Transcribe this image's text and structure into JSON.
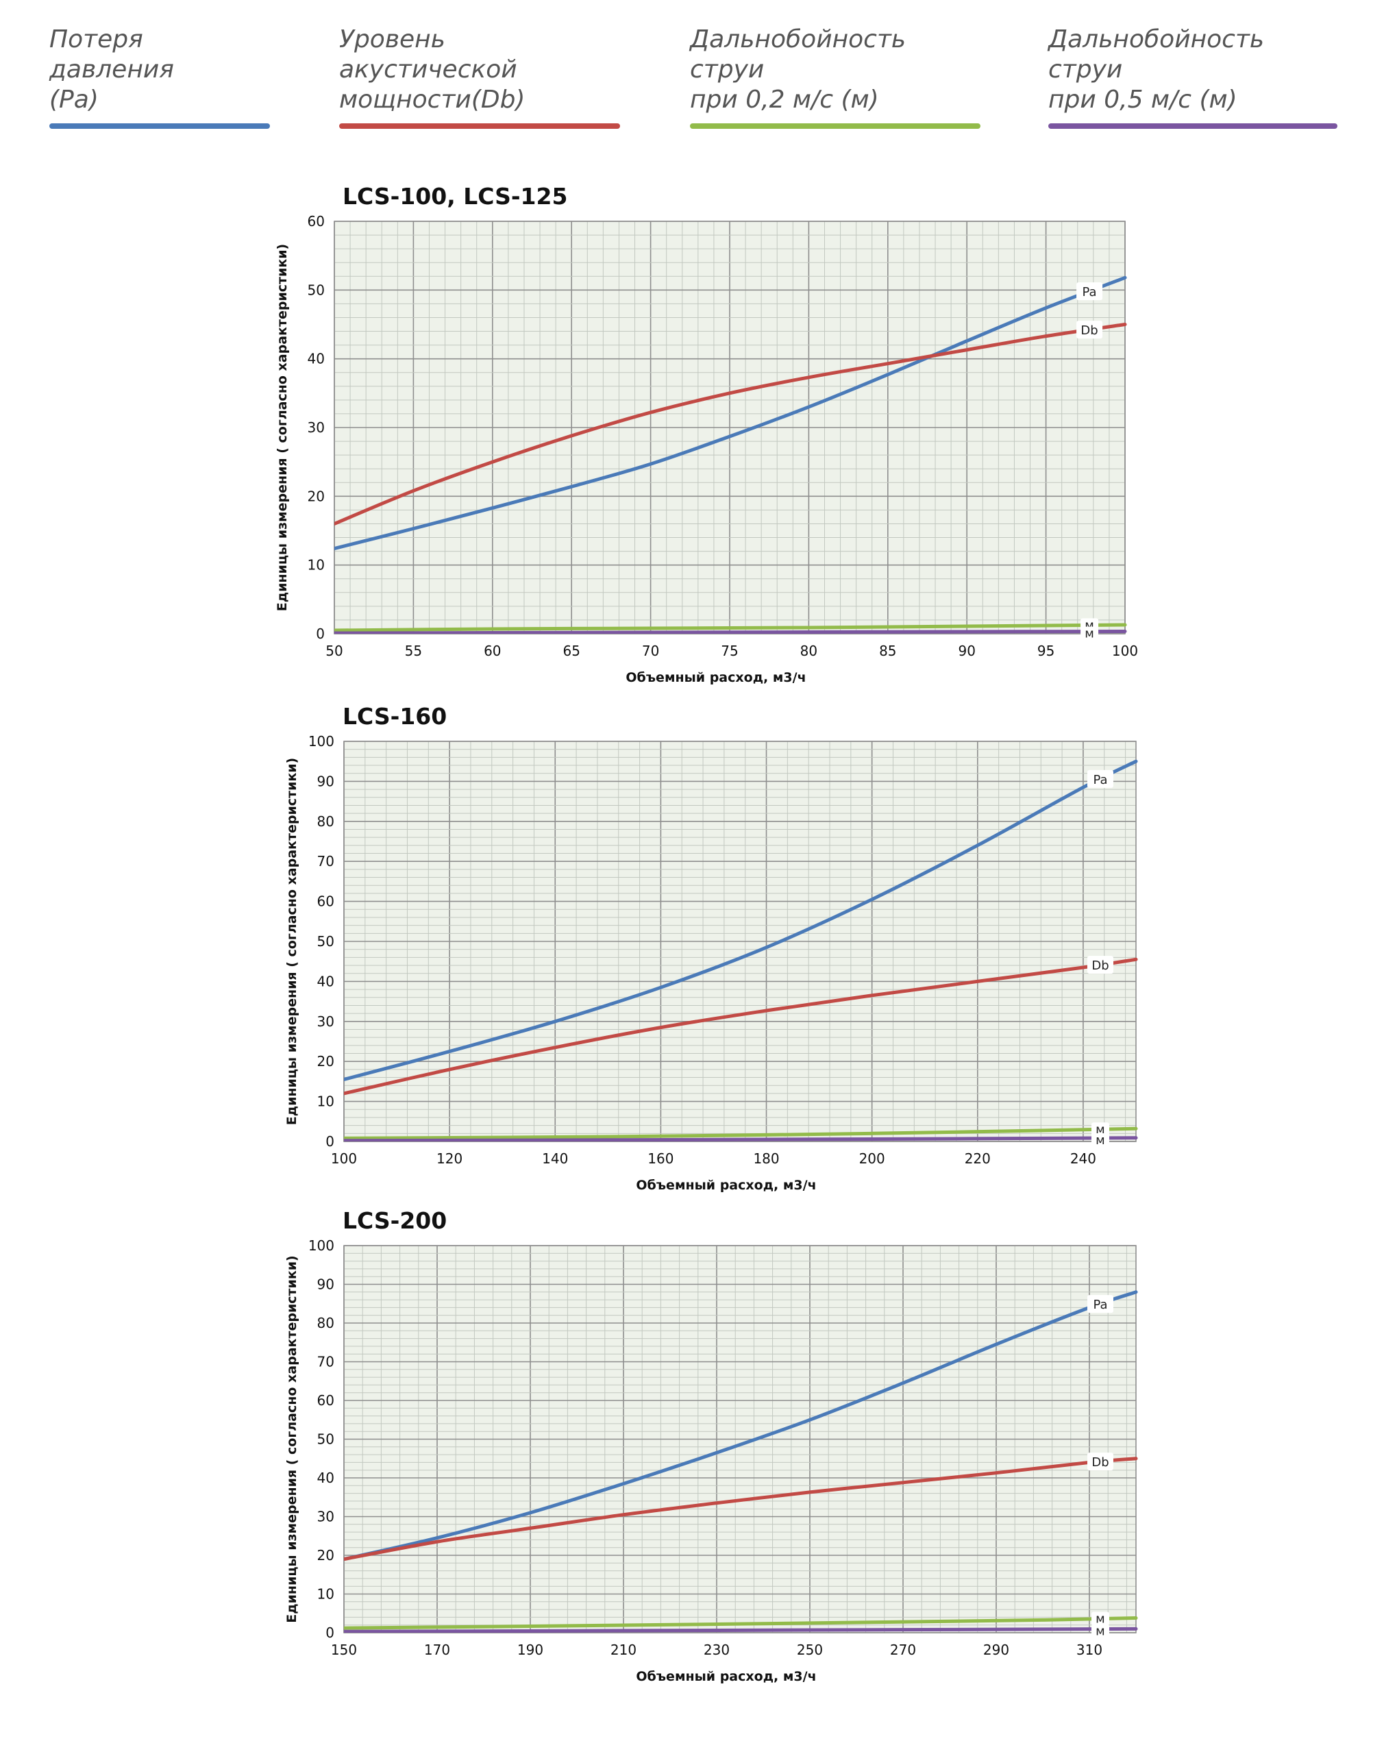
{
  "legend": [
    {
      "line1": "Потеря давления",
      "line2": "(Pa)",
      "color": "#4a7ab8"
    },
    {
      "line1": "Уровень акустической",
      "line2": "мощности(Db)",
      "color": "#c24a45"
    },
    {
      "line1": "Дальнобойность струи",
      "line2": "при 0,2 м/с (м)",
      "color": "#92bb4a"
    },
    {
      "line1": "Дальнобойность струи",
      "line2": "при 0,5 м/с (м)",
      "color": "#7a55a0"
    }
  ],
  "chart_data": [
    {
      "type": "line",
      "title": "LCS-100, LCS-125",
      "xlabel": "Объемный расход, м3/ч",
      "ylabel": "Единицы измерения ( согласно характеристики)",
      "xlim": [
        50,
        100
      ],
      "ylim": [
        0,
        60
      ],
      "xticks": [
        50,
        55,
        60,
        65,
        70,
        75,
        80,
        85,
        90,
        95,
        100
      ],
      "yticks": [
        0,
        10,
        20,
        30,
        40,
        50,
        60
      ],
      "grid": true,
      "series": [
        {
          "name": "Pa",
          "color": "#4a7ab8",
          "x": [
            50,
            55,
            60,
            65,
            70,
            75,
            80,
            85,
            90,
            95,
            100
          ],
          "y": [
            12.4,
            15.3,
            18.3,
            21.4,
            24.7,
            28.7,
            33.0,
            37.7,
            42.6,
            47.4,
            51.8
          ]
        },
        {
          "name": "Db",
          "color": "#c24a45",
          "x": [
            50,
            55,
            60,
            65,
            70,
            75,
            80,
            85,
            90,
            95,
            100
          ],
          "y": [
            16.0,
            20.8,
            25.0,
            28.8,
            32.2,
            35.0,
            37.3,
            39.3,
            41.3,
            43.3,
            45.0
          ]
        },
        {
          "name": "м",
          "color": "#92bb4a",
          "x": [
            50,
            60,
            70,
            80,
            90,
            100
          ],
          "y": [
            0.5,
            0.7,
            0.8,
            0.9,
            1.1,
            1.3
          ]
        },
        {
          "name": "м",
          "color": "#7a55a0",
          "x": [
            50,
            60,
            70,
            80,
            90,
            100
          ],
          "y": [
            0.1,
            0.15,
            0.2,
            0.25,
            0.3,
            0.35
          ]
        }
      ]
    },
    {
      "type": "line",
      "title": "LCS-160",
      "xlabel": "Объемный расход, м3/ч",
      "ylabel": "Единицы измерения ( согласно характеристики)",
      "xlim": [
        100,
        250
      ],
      "ylim": [
        0,
        100
      ],
      "xticks": [
        100,
        120,
        140,
        160,
        180,
        200,
        220,
        240
      ],
      "yticks": [
        0,
        10,
        20,
        30,
        40,
        50,
        60,
        70,
        80,
        90,
        100
      ],
      "grid": true,
      "series": [
        {
          "name": "Pa",
          "color": "#4a7ab8",
          "x": [
            100,
            120,
            140,
            160,
            180,
            200,
            220,
            240,
            250
          ],
          "y": [
            15.5,
            22.5,
            30.0,
            38.5,
            48.5,
            60.5,
            74.0,
            88.5,
            95.0
          ]
        },
        {
          "name": "Db",
          "color": "#c24a45",
          "x": [
            100,
            120,
            140,
            160,
            180,
            200,
            220,
            240,
            250
          ],
          "y": [
            12.0,
            18.0,
            23.5,
            28.5,
            32.7,
            36.5,
            40.0,
            43.5,
            45.5
          ]
        },
        {
          "name": "м",
          "color": "#92bb4a",
          "x": [
            100,
            150,
            200,
            250
          ],
          "y": [
            0.8,
            1.2,
            2.0,
            3.2
          ]
        },
        {
          "name": "м",
          "color": "#7a55a0",
          "x": [
            100,
            150,
            200,
            250
          ],
          "y": [
            0.2,
            0.4,
            0.6,
            0.9
          ]
        }
      ]
    },
    {
      "type": "line",
      "title": "LCS-200",
      "xlabel": "Объемный расход, м3/ч",
      "ylabel": "Единицы измерения ( согласно характеристики)",
      "xlim": [
        150,
        320
      ],
      "ylim": [
        0,
        100
      ],
      "xticks": [
        150,
        170,
        190,
        210,
        230,
        250,
        270,
        290,
        310
      ],
      "yticks": [
        0,
        10,
        20,
        30,
        40,
        50,
        60,
        70,
        80,
        90,
        100
      ],
      "grid": true,
      "series": [
        {
          "name": "Pa",
          "color": "#4a7ab8",
          "x": [
            150,
            170,
            190,
            210,
            230,
            250,
            270,
            290,
            310,
            320
          ],
          "y": [
            19.0,
            24.5,
            31.0,
            38.5,
            46.5,
            55.0,
            64.5,
            74.5,
            84.0,
            88.0
          ]
        },
        {
          "name": "Db",
          "color": "#c24a45",
          "x": [
            150,
            170,
            190,
            210,
            230,
            250,
            270,
            290,
            310,
            320
          ],
          "y": [
            19.0,
            23.5,
            27.0,
            30.5,
            33.5,
            36.3,
            38.8,
            41.3,
            44.0,
            45.0
          ]
        },
        {
          "name": "м",
          "color": "#92bb4a",
          "x": [
            150,
            200,
            250,
            300,
            320
          ],
          "y": [
            1.2,
            1.8,
            2.5,
            3.3,
            3.8
          ]
        },
        {
          "name": "м",
          "color": "#7a55a0",
          "x": [
            150,
            200,
            250,
            300,
            320
          ],
          "y": [
            0.3,
            0.5,
            0.7,
            0.9,
            1.0
          ]
        }
      ]
    }
  ]
}
